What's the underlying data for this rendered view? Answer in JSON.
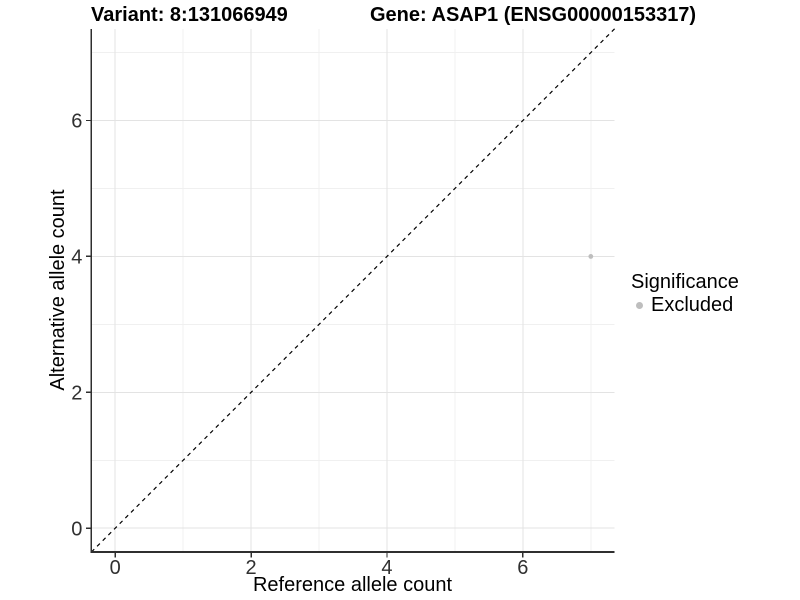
{
  "titles": {
    "left": "Variant: 8:131066949",
    "right": "Gene: ASAP1 (ENSG00000153317)"
  },
  "chart_data": {
    "type": "scatter",
    "xlabel": "Reference allele count",
    "ylabel": "Alternative allele count",
    "xlim": [
      -0.35,
      7.35
    ],
    "ylim": [
      -0.35,
      7.35
    ],
    "major_ticks": [
      0,
      2,
      4,
      6
    ],
    "minor_ticks": [
      1,
      3,
      5,
      7
    ],
    "grid": true,
    "reference_line": {
      "type": "identity",
      "style": "dashed",
      "color": "#000000"
    },
    "series": [
      {
        "name": "Excluded",
        "color": "#bebebe",
        "points": [
          {
            "x": 7,
            "y": 4
          }
        ]
      }
    ],
    "legend": {
      "title": "Significance",
      "position": "right",
      "items": [
        {
          "label": "Excluded",
          "color": "#bebebe"
        }
      ]
    }
  },
  "colors": {
    "background": "#ffffff",
    "grid_major": "#e3e3e3",
    "grid_minor": "#f0f0f0",
    "axis_line": "#2f2f2f",
    "tick_text": "#303030",
    "label_text": "#000000"
  }
}
